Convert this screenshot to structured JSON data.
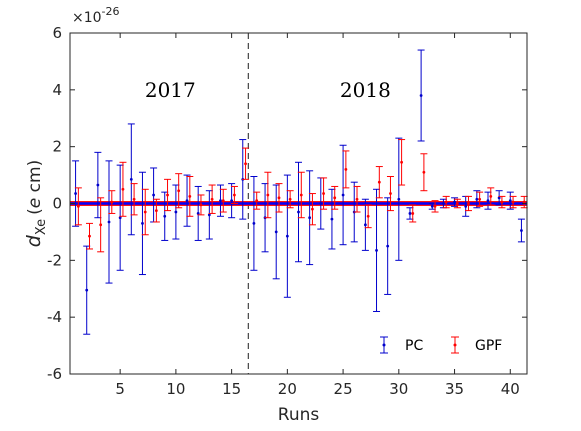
{
  "chart_data": {
    "type": "scatter",
    "title": "",
    "xlabel": "Runs",
    "ylabel_main": "d",
    "ylabel_sub": "Xe",
    "ylabel_unit_open": "(",
    "ylabel_unit_italic": "e",
    "ylabel_unit_rest": " cm)",
    "y_exponent_base": "×10",
    "y_exponent_power": "-26",
    "xlim": [
      0.5,
      41.5
    ],
    "ylim": [
      -6,
      6
    ],
    "xticks": [
      5,
      10,
      15,
      20,
      25,
      30,
      35,
      40
    ],
    "yticks": [
      -6,
      -4,
      -2,
      0,
      2,
      4,
      6
    ],
    "year_divider_x": 16.5,
    "annotations": [
      {
        "text": "2017",
        "x": 9.5,
        "y": 4.0
      },
      {
        "text": "2018",
        "x": 27.0,
        "y": 4.0
      }
    ],
    "reference_line": {
      "y": 0.0,
      "color": "#0000ff",
      "band": [
        -0.05,
        0.05
      ],
      "band_color": "#ff0000"
    },
    "legend": {
      "position": "bottom-right"
    },
    "series": [
      {
        "name": "PC",
        "color": "#0000cc",
        "x": [
          1,
          2,
          3,
          4,
          5,
          6,
          7,
          8,
          9,
          10,
          11,
          12,
          13,
          14,
          15,
          16,
          17,
          18,
          19,
          20,
          21,
          22,
          23,
          24,
          25,
          26,
          27,
          28,
          29,
          30,
          31,
          32,
          33,
          34,
          35,
          36,
          37,
          38,
          39,
          40,
          41
        ],
        "y": [
          0.35,
          -3.05,
          0.65,
          -0.65,
          -0.5,
          0.85,
          -0.7,
          0.3,
          -0.45,
          -0.3,
          0.1,
          -0.35,
          -0.4,
          0.1,
          0.1,
          0.85,
          -0.7,
          -0.5,
          -1.0,
          -1.15,
          -0.3,
          -0.5,
          0.0,
          -0.55,
          0.3,
          -0.3,
          -0.75,
          -1.65,
          -1.5,
          0.15,
          -0.35,
          3.8,
          -0.1,
          0.0,
          0.05,
          -0.1,
          0.15,
          0.1,
          0.2,
          0.1,
          -0.95
        ],
        "err": [
          1.15,
          1.55,
          1.15,
          2.15,
          1.85,
          1.95,
          1.8,
          0.95,
          0.85,
          0.95,
          0.9,
          0.95,
          0.85,
          0.55,
          0.6,
          1.4,
          1.65,
          1.2,
          1.65,
          2.15,
          1.75,
          1.65,
          0.9,
          1.05,
          1.75,
          1.05,
          0.9,
          2.15,
          1.7,
          2.15,
          0.2,
          1.6,
          0.1,
          0.15,
          0.15,
          0.35,
          0.3,
          0.3,
          0.25,
          0.3,
          0.4
        ]
      },
      {
        "name": "GPF",
        "color": "#ff0000",
        "x": [
          1.25,
          2.25,
          3.25,
          4.25,
          5.25,
          6.25,
          7.25,
          8.25,
          9.25,
          10.25,
          11.25,
          12.25,
          13.25,
          14.25,
          15.25,
          16.25,
          17.25,
          18.25,
          19.25,
          20.25,
          21.25,
          22.25,
          23.25,
          24.25,
          25.25,
          26.25,
          27.25,
          28.25,
          29.25,
          30.25,
          31.25,
          32.25,
          33.25,
          34.25,
          35.25,
          36.25,
          37.25,
          38.25,
          39.25,
          40.25,
          41.25
        ],
        "y": [
          -0.1,
          -1.15,
          -0.75,
          0.05,
          0.5,
          0.15,
          -0.3,
          -0.25,
          0.3,
          0.45,
          0.25,
          -0.05,
          0.15,
          0.1,
          0.3,
          1.4,
          0.1,
          0.3,
          0.2,
          0.15,
          0.3,
          -0.2,
          0.35,
          0.2,
          1.2,
          0.15,
          -0.45,
          0.75,
          0.35,
          1.45,
          -0.35,
          1.1,
          -0.1,
          0.05,
          0.0,
          0.0,
          0.15,
          0.25,
          0.05,
          0.05,
          0.05
        ],
        "err": [
          0.65,
          0.45,
          0.95,
          0.4,
          0.95,
          0.55,
          0.8,
          0.4,
          0.55,
          0.6,
          0.7,
          0.35,
          0.5,
          0.4,
          0.3,
          0.55,
          0.3,
          0.8,
          0.5,
          0.3,
          0.8,
          0.55,
          0.55,
          0.4,
          0.65,
          0.45,
          0.4,
          0.55,
          0.6,
          0.8,
          0.3,
          0.65,
          0.2,
          0.2,
          0.15,
          0.25,
          0.25,
          0.3,
          0.2,
          0.2,
          0.2
        ]
      }
    ]
  }
}
